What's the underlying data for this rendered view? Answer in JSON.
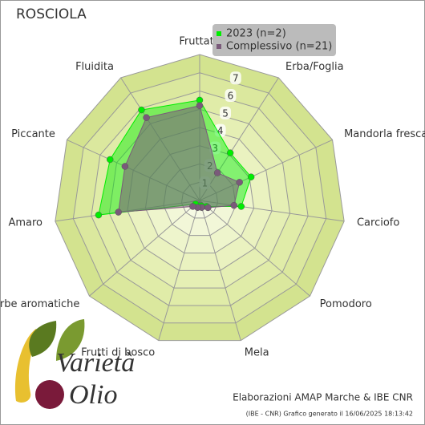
{
  "chart_data": {
    "type": "radar",
    "title": "ROSCIOLA",
    "categories": [
      "Fruttato",
      "Erba/Foglia",
      "Mandorla fresca",
      "Carciofo",
      "Pomodoro",
      "Mela",
      "Frutti di bosco",
      "Erbe aromatiche",
      "Amaro",
      "Piccante",
      "Fluidita"
    ],
    "series": [
      {
        "name": "2023 (n=2)",
        "color": "#00ee00",
        "values": [
          5.5,
          3.1,
          3.1,
          2.3,
          0.5,
          0.3,
          0.3,
          0.3,
          5.6,
          5.4,
          5.9
        ]
      },
      {
        "name": "Complessivo (n=21)",
        "color": "#7a5a7a",
        "values": [
          5.2,
          1.8,
          2.4,
          1.9,
          0.6,
          0.4,
          0.4,
          0.5,
          4.5,
          4.5,
          5.4
        ]
      }
    ],
    "rlim": [
      0,
      8
    ],
    "rticks": [
      1,
      2,
      3,
      4,
      5,
      6,
      7
    ],
    "legend": "top-right"
  },
  "logo": [
    "Varietà",
    "Olio"
  ],
  "credits": "Elaborazioni AMAP Marche & IBE CNR",
  "footnote": "(IBE - CNR) Grafico generato il 16/06/2025 18:13:42"
}
